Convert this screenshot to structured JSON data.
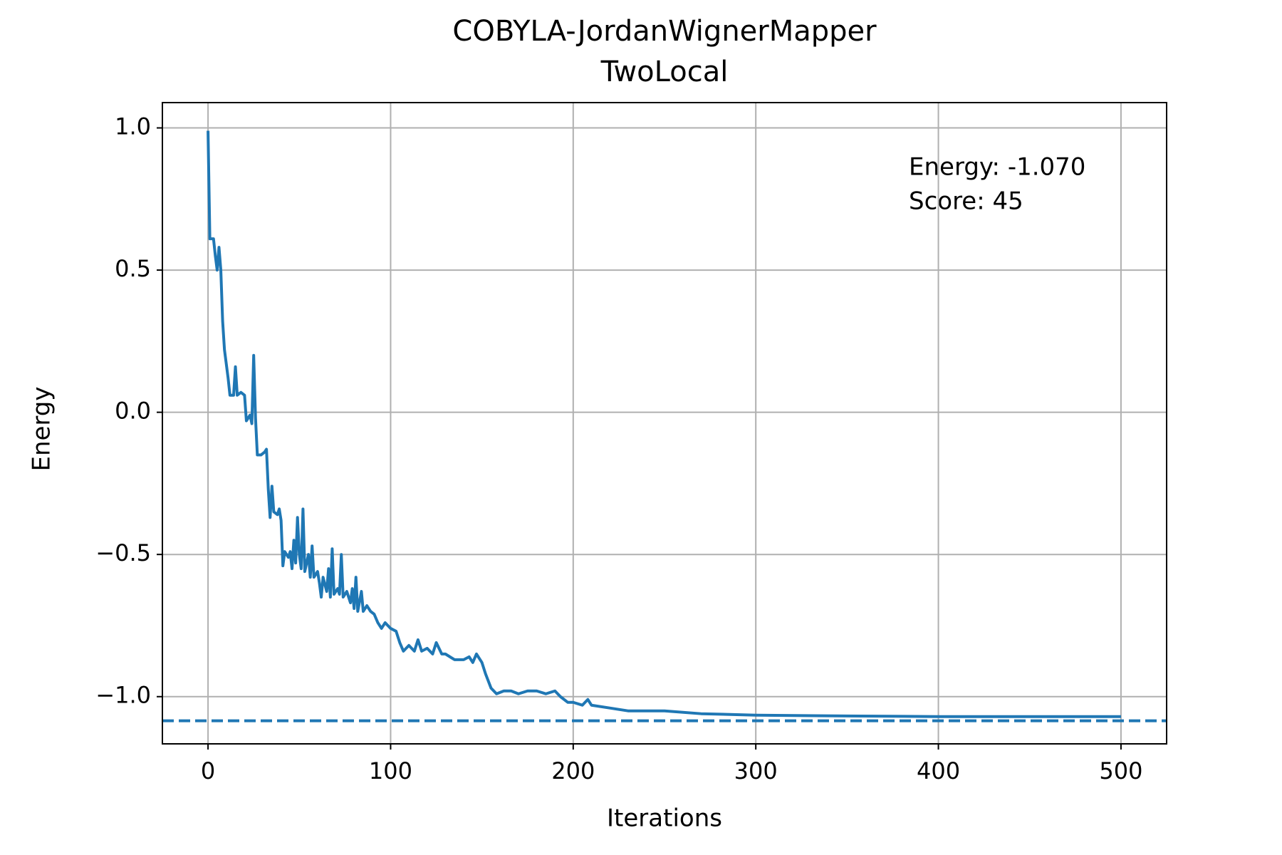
{
  "chart_data": {
    "type": "line",
    "title": "COBYLA-JordanWignerMapper",
    "subtitle": "TwoLocal",
    "x_label": "Iterations",
    "y_label": "Energy",
    "annotations": [
      "Energy: -1.070",
      "Score: 45"
    ],
    "x": [
      0,
      1,
      3,
      4,
      5,
      6,
      7,
      8,
      9,
      11,
      12,
      14,
      15,
      16,
      18,
      20,
      21,
      23,
      24,
      25,
      26,
      27,
      29,
      31,
      32,
      33,
      34,
      35,
      36,
      38,
      39,
      40,
      41,
      42,
      44,
      45,
      46,
      47,
      48,
      49,
      50,
      51,
      52,
      53,
      55,
      56,
      57,
      58,
      60,
      61,
      62,
      63,
      65,
      66,
      67,
      68,
      69,
      71,
      72,
      73,
      74,
      76,
      78,
      79,
      80,
      81,
      82,
      84,
      85,
      87,
      89,
      91,
      93,
      95,
      97,
      100,
      103,
      105,
      107,
      110,
      113,
      115,
      117,
      120,
      123,
      125,
      128,
      130,
      135,
      140,
      143,
      145,
      147,
      150,
      152,
      155,
      158,
      162,
      166,
      170,
      175,
      180,
      185,
      190,
      193,
      197,
      200,
      205,
      208,
      210,
      220,
      230,
      250,
      270,
      300,
      350,
      400,
      500
    ],
    "series": [
      {
        "name": "Energy",
        "color": "#1f77b4",
        "values": [
          0.99,
          0.61,
          0.61,
          0.55,
          0.5,
          0.58,
          0.5,
          0.32,
          0.22,
          0.12,
          0.06,
          0.06,
          0.16,
          0.06,
          0.07,
          0.06,
          -0.03,
          -0.01,
          -0.04,
          0.2,
          -0.02,
          -0.15,
          -0.15,
          -0.14,
          -0.13,
          -0.27,
          -0.37,
          -0.26,
          -0.35,
          -0.36,
          -0.34,
          -0.38,
          -0.54,
          -0.49,
          -0.51,
          -0.49,
          -0.55,
          -0.45,
          -0.53,
          -0.37,
          -0.5,
          -0.55,
          -0.34,
          -0.56,
          -0.5,
          -0.58,
          -0.47,
          -0.58,
          -0.56,
          -0.6,
          -0.65,
          -0.58,
          -0.63,
          -0.55,
          -0.65,
          -0.48,
          -0.64,
          -0.62,
          -0.64,
          -0.5,
          -0.65,
          -0.63,
          -0.67,
          -0.62,
          -0.69,
          -0.58,
          -0.7,
          -0.63,
          -0.7,
          -0.68,
          -0.7,
          -0.71,
          -0.74,
          -0.76,
          -0.74,
          -0.76,
          -0.77,
          -0.81,
          -0.84,
          -0.82,
          -0.84,
          -0.8,
          -0.84,
          -0.83,
          -0.85,
          -0.81,
          -0.85,
          -0.85,
          -0.87,
          -0.87,
          -0.86,
          -0.88,
          -0.85,
          -0.88,
          -0.92,
          -0.97,
          -0.99,
          -0.98,
          -0.98,
          -0.99,
          -0.98,
          -0.98,
          -0.99,
          -0.98,
          -1.0,
          -1.02,
          -1.02,
          -1.03,
          -1.01,
          -1.03,
          -1.04,
          -1.05,
          -1.05,
          -1.06,
          -1.065,
          -1.068,
          -1.07,
          -1.07
        ]
      }
    ],
    "reference_line": {
      "value": -1.085,
      "color": "#1f77b4"
    },
    "xlim": [
      -25,
      525
    ],
    "xticks": [
      0,
      100,
      200,
      300,
      400,
      500
    ],
    "ylim": [
      -1.166,
      1.089
    ],
    "yticks": [
      {
        "value": 1.0,
        "label": "1.0"
      },
      {
        "value": 0.5,
        "label": "0.5"
      },
      {
        "value": 0.0,
        "label": "0.0"
      },
      {
        "value": -0.5,
        "label": "−0.5"
      },
      {
        "value": -1.0,
        "label": "−1.0"
      }
    ],
    "grid": true
  }
}
